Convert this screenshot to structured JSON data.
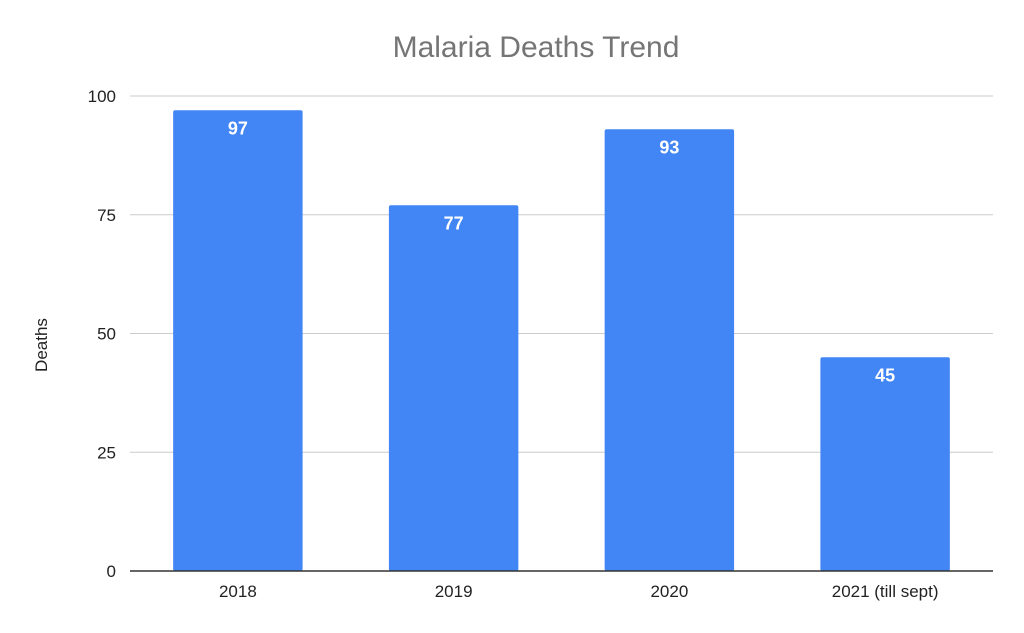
{
  "chart_data": {
    "type": "bar",
    "title": "Malaria Deaths Trend",
    "xlabel": "",
    "ylabel": "Deaths",
    "categories": [
      "2018",
      "2019",
      "2020",
      "2021 (till sept)"
    ],
    "values": [
      97,
      77,
      93,
      45
    ],
    "data_labels": [
      "97",
      "77",
      "93",
      "45"
    ],
    "ylim": [
      0,
      100
    ],
    "yticks": [
      0,
      25,
      50,
      75,
      100
    ],
    "bar_color": "#4285f4",
    "grid": true,
    "legend": "none"
  }
}
